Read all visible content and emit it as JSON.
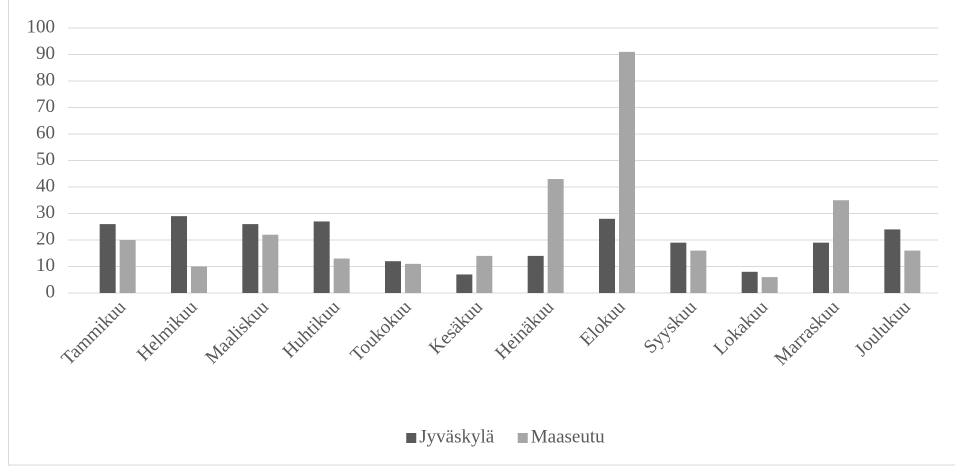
{
  "chart_data": {
    "type": "bar",
    "categories": [
      "Tammikuu",
      "Helmikuu",
      "Maaliskuu",
      "Huhtikuu",
      "Toukokuu",
      "Kesäkuu",
      "Heinäkuu",
      "Elokuu",
      "Syyskuu",
      "Lokakuu",
      "Marraskuu",
      "Joulukuu"
    ],
    "series": [
      {
        "name": "Jyväskylä",
        "color": "#595959",
        "values": [
          26,
          29,
          26,
          27,
          12,
          7,
          14,
          28,
          19,
          8,
          19,
          24
        ]
      },
      {
        "name": "Maaseutu",
        "color": "#a6a6a6",
        "values": [
          20,
          10,
          22,
          13,
          11,
          14,
          43,
          91,
          16,
          6,
          35,
          16
        ]
      }
    ],
    "ylim": [
      0,
      100
    ],
    "yticks": [
      0,
      10,
      20,
      30,
      40,
      50,
      60,
      70,
      80,
      90,
      100
    ],
    "grid": true,
    "legend": "bottom"
  }
}
